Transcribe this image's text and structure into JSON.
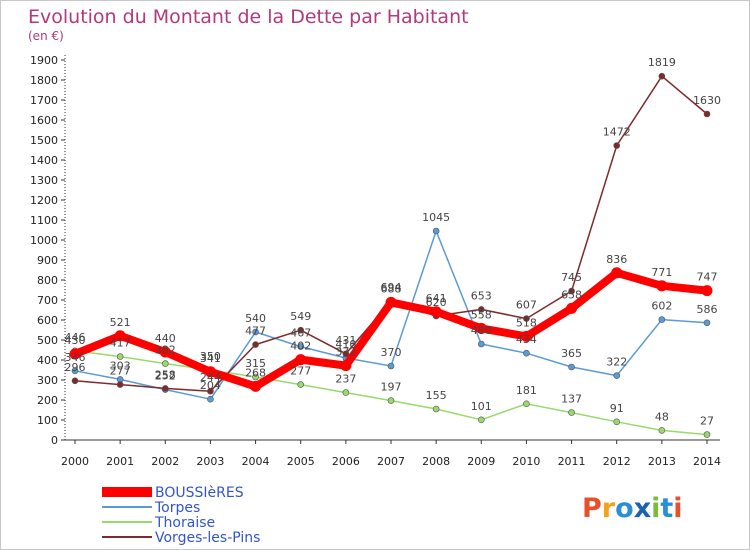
{
  "chart_data": {
    "type": "line",
    "title": "Evolution du Montant de la Dette par Habitant",
    "subtitle": "(en €)",
    "x": [
      "2000",
      "2001",
      "2002",
      "2003",
      "2004",
      "2005",
      "2006",
      "2007",
      "2008",
      "2009",
      "2010",
      "2011",
      "2012",
      "2013",
      "2014"
    ],
    "ylim": [
      0,
      1900
    ],
    "yticks": [
      0,
      100,
      200,
      300,
      400,
      500,
      600,
      700,
      800,
      900,
      1000,
      1100,
      1200,
      1300,
      1400,
      1500,
      1600,
      1700,
      1800,
      1900
    ],
    "grid": false,
    "legend_position": "bottom-left",
    "series": [
      {
        "name": "BOUSSIèRES",
        "color": "#ff0000",
        "values": [
          430,
          521,
          440,
          341,
          268,
          402,
          372,
          688,
          641,
          558,
          518,
          658,
          836,
          771,
          747
        ]
      },
      {
        "name": "Torpes",
        "color": "#5b9bd5",
        "values": [
          346,
          303,
          252,
          204,
          540,
          467,
          410,
          370,
          1045,
          480,
          434,
          365,
          322,
          602,
          586
        ]
      },
      {
        "name": "Thoraise",
        "color": "#99d96b",
        "values": [
          446,
          417,
          382,
          350,
          315,
          277,
          237,
          197,
          155,
          101,
          181,
          137,
          91,
          48,
          27
        ]
      },
      {
        "name": "Vorges-les-Pins",
        "color": "#7f2a2a",
        "values": [
          296,
          277,
          258,
          244,
          477,
          549,
          431,
          694,
          620,
          653,
          607,
          745,
          1472,
          1819,
          1630
        ]
      }
    ]
  },
  "branding": {
    "logo_text": "Proxiti",
    "logo_letters": [
      {
        "ch": "P",
        "color": "#e8502a"
      },
      {
        "ch": "r",
        "color": "#f4a21e"
      },
      {
        "ch": "o",
        "color": "#2a8fd4"
      },
      {
        "ch": "x",
        "color": "#1b62b0"
      },
      {
        "ch": "i",
        "color": "#7abd3c"
      },
      {
        "ch": "t",
        "color": "#2a8fd4"
      },
      {
        "ch": "i",
        "color": "#e8502a"
      }
    ]
  }
}
